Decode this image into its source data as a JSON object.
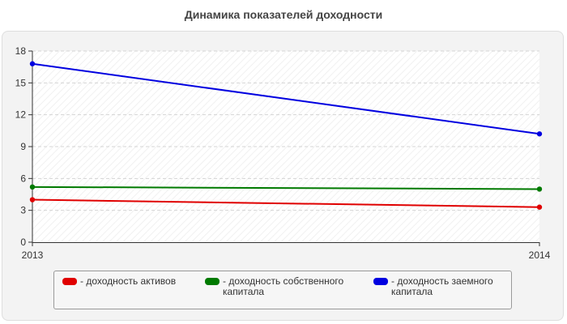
{
  "chart_data": {
    "type": "line",
    "title": "Динамика показателей доходности",
    "x": [
      "2013",
      "2014"
    ],
    "ylim": [
      0,
      18
    ],
    "yticks": [
      "0",
      "3",
      "6",
      "9",
      "12",
      "15",
      "18"
    ],
    "grid": true,
    "legend_position": "bottom",
    "series": [
      {
        "name": "доходность активов",
        "legend_label": "- доходность активов",
        "color": "#e00000",
        "values": [
          4.0,
          3.3
        ]
      },
      {
        "name": "доходность собственного капитала",
        "legend_label": "- доходность собственного капитала",
        "color": "#007a00",
        "values": [
          5.2,
          5.0
        ]
      },
      {
        "name": "доходность заемного капитала",
        "legend_label": "- доходность заемного капитала",
        "color": "#0000e0",
        "values": [
          16.8,
          10.2
        ]
      }
    ]
  }
}
